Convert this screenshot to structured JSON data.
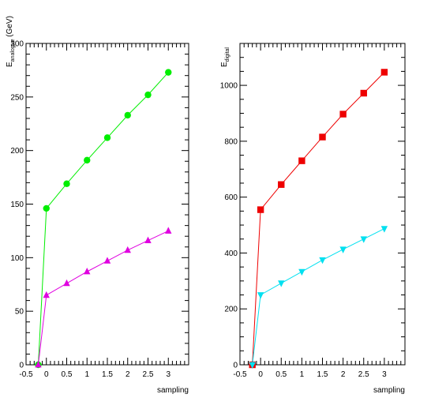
{
  "chart_data": [
    {
      "type": "line",
      "xlabel": "sampling",
      "ylabel_main": "E",
      "ylabel_sub": "analogue",
      "ylabel_unit": "(GeV)",
      "xlim": [
        -0.5,
        3.5
      ],
      "ylim": [
        0,
        300
      ],
      "xticks": [
        -0.5,
        0,
        0.5,
        1,
        1.5,
        2,
        2.5,
        3
      ],
      "xtick_labels": [
        "-0.5",
        "0",
        "0.5",
        "1",
        "1.5",
        "2",
        "2.5",
        "3"
      ],
      "yticks": [
        0,
        50,
        100,
        150,
        200,
        250,
        300
      ],
      "ytick_labels": [
        "0",
        "50",
        "100",
        "150",
        "200",
        "250",
        "300"
      ],
      "series": [
        {
          "color": "#00ee00",
          "marker": "circle",
          "x": [
            -0.2,
            0,
            0.5,
            1,
            1.5,
            2,
            2.5,
            3
          ],
          "y": [
            0,
            146,
            169,
            191,
            212,
            233,
            252,
            273
          ]
        },
        {
          "color": "#e000e0",
          "marker": "triangle-up",
          "x": [
            -0.2,
            0,
            0.5,
            1,
            1.5,
            2,
            2.5,
            3
          ],
          "y": [
            0,
            65,
            76,
            87,
            97,
            107,
            116,
            125
          ]
        }
      ]
    },
    {
      "type": "line",
      "xlabel": "sampling",
      "ylabel_main": "E",
      "ylabel_sub": "digital",
      "ylabel_unit": "",
      "xlim": [
        -0.5,
        3.5
      ],
      "ylim": [
        0,
        1150
      ],
      "xticks": [
        -0.5,
        0,
        0.5,
        1,
        1.5,
        2,
        2.5,
        3
      ],
      "xtick_labels": [
        "-0.5",
        "0",
        "0.5",
        "1",
        "1.5",
        "2",
        "2.5",
        "3"
      ],
      "yticks": [
        0,
        200,
        400,
        600,
        800,
        1000
      ],
      "ytick_labels": [
        "0",
        "200",
        "400",
        "600",
        "800",
        "1000"
      ],
      "series": [
        {
          "color": "#ee0000",
          "marker": "square",
          "x": [
            -0.2,
            0,
            0.5,
            1,
            1.5,
            2,
            2.5,
            3
          ],
          "y": [
            0,
            555,
            645,
            730,
            815,
            897,
            972,
            1047
          ]
        },
        {
          "color": "#00e0f0",
          "marker": "triangle-down",
          "x": [
            -0.2,
            0,
            0.5,
            1,
            1.5,
            2,
            2.5,
            3
          ],
          "y": [
            0,
            250,
            292,
            333,
            375,
            413,
            450,
            487
          ]
        }
      ]
    }
  ]
}
